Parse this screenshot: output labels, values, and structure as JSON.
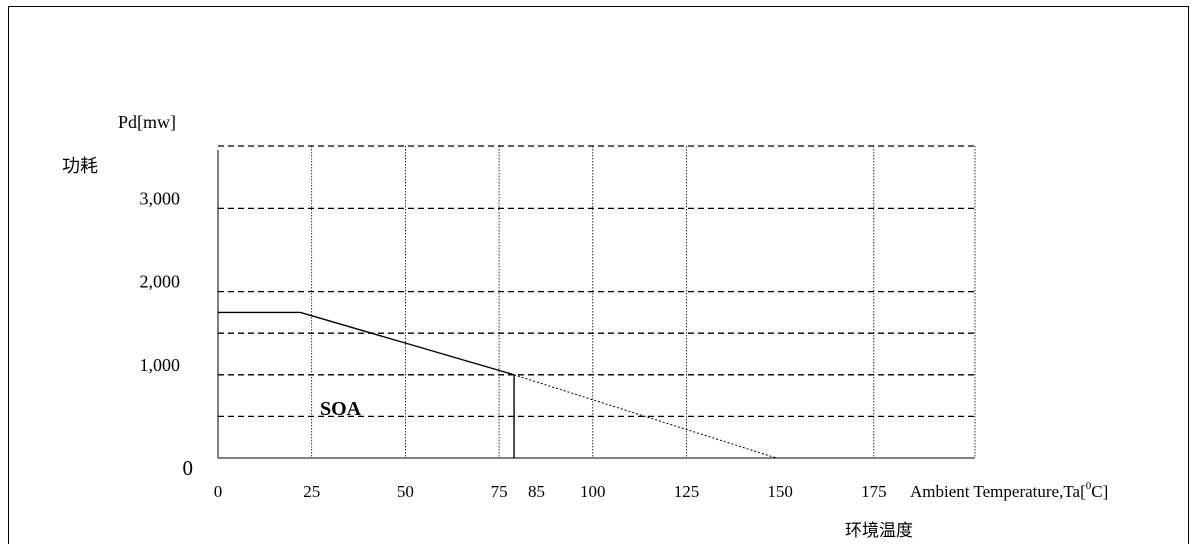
{
  "chart_data": {
    "type": "line",
    "y_unit_label": "Pd[mw]",
    "y_label_cn": "功耗",
    "x_label": "Ambient Temperature,Ta[",
    "x_label_unit_sup": "0",
    "x_label_unit_tail": "C]",
    "x_label_cn": "环境温度",
    "region_label": "SOA",
    "x_ticks": [
      0,
      25,
      50,
      75,
      85,
      100,
      125,
      150,
      175
    ],
    "x_tick_labels": [
      "0",
      "25",
      "50",
      "75",
      "85",
      "100",
      "125",
      "150",
      "175"
    ],
    "x_vertical_gridlines": [
      25,
      50,
      75,
      100,
      125,
      175
    ],
    "y_ticks": [
      0,
      1000,
      2000,
      3000
    ],
    "y_tick_labels": [
      "0",
      "1,000",
      "2,000",
      "3,000"
    ],
    "y_dashed_gridlines": [
      500,
      1000,
      1500,
      2000,
      3000,
      3750
    ],
    "xlim": [
      0,
      202
    ],
    "ylim": [
      0,
      3750
    ],
    "series": [
      {
        "style": "solid",
        "points": [
          [
            0,
            1750
          ],
          [
            22,
            1750
          ],
          [
            79,
            1000
          ]
        ]
      },
      {
        "style": "dotted",
        "points": [
          [
            79,
            1000
          ],
          [
            149,
            0
          ]
        ]
      },
      {
        "style": "solid",
        "points": [
          [
            79,
            1000
          ],
          [
            79,
            0
          ]
        ]
      }
    ],
    "grid": true,
    "legend": "none"
  }
}
